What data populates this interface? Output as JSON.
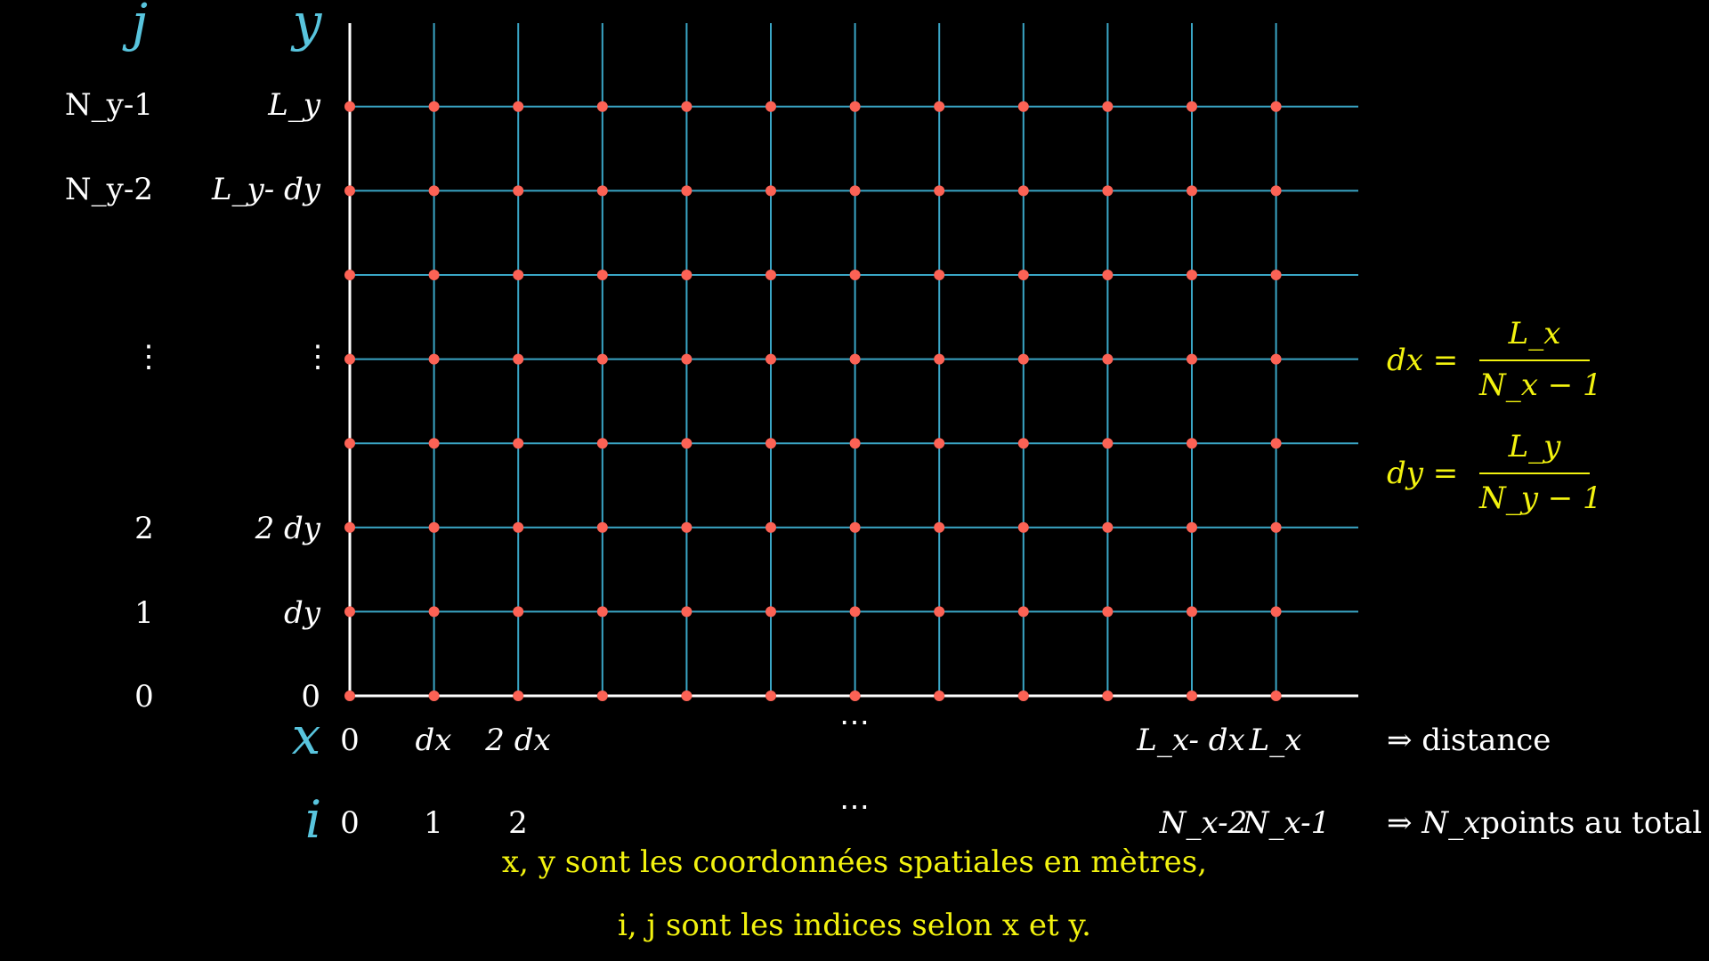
{
  "index_axis_label_j": "j",
  "coord_axis_label_y": "y",
  "coord_axis_label_x": "x",
  "index_axis_label_i": "i",
  "row_index_labels": [
    "N_y-1",
    "N_y-2",
    "⋮",
    "2",
    "1",
    "0"
  ],
  "row_coord_labels": [
    "L_y",
    "L_y- dy",
    "⋮",
    "2 dy",
    "dy",
    "0"
  ],
  "col_coord_labels": [
    "0",
    "dx",
    "2 dx",
    "⋯",
    "L_x- dx",
    "L_x"
  ],
  "col_index_labels": [
    "0",
    "1",
    "2",
    "⋯",
    "N_x-2",
    "N_x-1"
  ],
  "right_notes": {
    "distance": "⇒ distance",
    "points_arrow": "⇒",
    "points_symbol": "N_x",
    "points_text": "points au total"
  },
  "formulas": {
    "dx": {
      "lhs": "dx =",
      "num": "L_x",
      "den": "N_x − 1"
    },
    "dy": {
      "lhs": "dy =",
      "num": "L_y",
      "den": "N_y − 1"
    }
  },
  "caption": {
    "line1": "x, y sont les coordonnées spatiales en mètres,",
    "line2": "i, j sont les indices selon x et y."
  },
  "grid": {
    "columns": 12,
    "rows": 8
  },
  "colors": {
    "background": "#000000",
    "grid_line": "#3aa6c6",
    "node": "#fc6255",
    "axis": "#ffffff",
    "index_label": "#58c4dd",
    "formula": "#f2f20f"
  }
}
